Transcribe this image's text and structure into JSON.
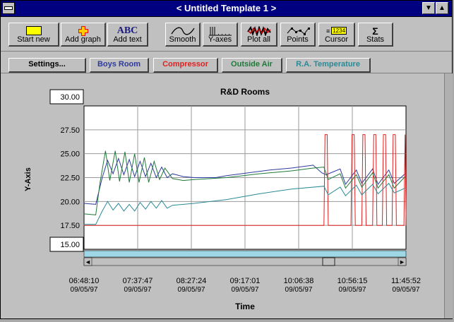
{
  "window": {
    "title": "< Untitled Template 1 >"
  },
  "toolbar": {
    "buttons": [
      {
        "label": "Start new",
        "icon": "start-new-icon"
      },
      {
        "label": "Add graph",
        "icon": "add-graph-icon"
      },
      {
        "label": "Add text",
        "icon": "add-text-icon",
        "icon_text": "ABC"
      },
      {
        "label": "Smooth",
        "icon": "smooth-icon"
      },
      {
        "label": "Y-axes",
        "icon": "y-axes-icon"
      },
      {
        "label": "Plot all",
        "icon": "plot-all-icon"
      },
      {
        "label": "Points",
        "icon": "points-icon"
      },
      {
        "label": "Cursor",
        "icon": "cursor-icon",
        "icon_text": "1234"
      },
      {
        "label": "Stats",
        "icon": "stats-icon",
        "icon_text": "Σ"
      }
    ]
  },
  "filters": {
    "settings_label": "Settings...",
    "series_buttons": [
      {
        "label": "Boys Room",
        "color": "#2e3a9e"
      },
      {
        "label": "Compressor",
        "color": "#e02020"
      },
      {
        "label": "Outside Air",
        "color": "#1f7a3a"
      },
      {
        "label": "R.A. Temperature",
        "color": "#2a8a96"
      }
    ]
  },
  "chart": {
    "ymax_field": "30.00",
    "ymin_field": "15.00",
    "x_tick_times": [
      "06:48:10",
      "07:37:47",
      "08:27:24",
      "09:17:01",
      "10:06:38",
      "10:56:15",
      "11:45:52"
    ],
    "x_tick_dates": [
      "09/05/97",
      "09/05/97",
      "09/05/97",
      "09/05/97",
      "09/05/97",
      "09/05/97",
      "09/05/97"
    ]
  },
  "chart_data": {
    "type": "line",
    "title": "R&D Rooms",
    "xlabel": "Time",
    "ylabel": "Y-Axis",
    "ylim": [
      15,
      30
    ],
    "yticks": [
      "27.50",
      "25.00",
      "22.50",
      "20.00",
      "17.50"
    ],
    "ytick_values": [
      27.5,
      25.0,
      22.5,
      20.0,
      17.5
    ],
    "xlim": [
      "06:48:10",
      "11:45:52"
    ],
    "grid": true,
    "series": [
      {
        "name": "Boys Room",
        "color": "#2e3a9e",
        "x": [
          "06:48",
          "06:59",
          "07:05",
          "07:10",
          "07:15",
          "07:20",
          "07:25",
          "07:30",
          "07:35",
          "07:40",
          "07:45",
          "07:50",
          "07:55",
          "08:00",
          "08:05",
          "08:10",
          "08:20",
          "08:30",
          "08:40",
          "08:50",
          "09:00",
          "09:20",
          "09:40",
          "10:00",
          "10:20",
          "10:28",
          "10:32",
          "10:45",
          "10:50",
          "11:00",
          "11:05",
          "11:15",
          "11:20",
          "11:30",
          "11:35",
          "11:45"
        ],
        "y": [
          19.8,
          19.7,
          22.5,
          24.3,
          22.9,
          24.5,
          22.8,
          24.4,
          22.6,
          24.2,
          22.6,
          24.0,
          22.5,
          23.6,
          22.5,
          22.9,
          22.6,
          22.5,
          22.5,
          22.5,
          22.7,
          23.0,
          23.3,
          23.5,
          23.8,
          23.0,
          22.8,
          23.4,
          21.8,
          23.3,
          21.9,
          23.4,
          21.8,
          23.3,
          21.9,
          22.9
        ]
      },
      {
        "name": "Compressor",
        "color": "#e02020",
        "x": [
          "06:48",
          "10:30",
          "10:31",
          "10:33",
          "10:34",
          "10:55",
          "10:56",
          "10:58",
          "10:59",
          "11:05",
          "11:06",
          "11:08",
          "11:09",
          "11:15",
          "11:16",
          "11:18",
          "11:19",
          "11:24",
          "11:25",
          "11:27",
          "11:28",
          "11:33",
          "11:34",
          "11:36",
          "11:37",
          "11:44",
          "11:45",
          "11:46"
        ],
        "y": [
          17.5,
          17.5,
          27.0,
          27.0,
          17.5,
          17.5,
          27.0,
          27.0,
          17.5,
          17.5,
          27.0,
          27.0,
          17.5,
          17.5,
          27.0,
          27.0,
          17.5,
          17.5,
          27.0,
          27.0,
          17.5,
          17.5,
          27.0,
          27.0,
          17.5,
          17.5,
          27.0,
          17.5
        ]
      },
      {
        "name": "Outside Air",
        "color": "#1f7a3a",
        "x": [
          "06:48",
          "06:59",
          "07:03",
          "07:08",
          "07:12",
          "07:17",
          "07:21",
          "07:26",
          "07:30",
          "07:35",
          "07:39",
          "07:44",
          "07:48",
          "07:53",
          "07:58",
          "08:03",
          "08:10",
          "08:20",
          "08:30",
          "09:00",
          "09:30",
          "10:00",
          "10:20",
          "10:30",
          "10:34",
          "10:45",
          "10:50",
          "11:00",
          "11:05",
          "11:15",
          "11:20",
          "11:30",
          "11:35",
          "11:45"
        ],
        "y": [
          18.7,
          18.6,
          22.0,
          25.3,
          22.2,
          25.3,
          22.1,
          25.2,
          22.0,
          25.0,
          22.0,
          24.6,
          22.0,
          24.2,
          22.3,
          23.5,
          22.4,
          22.2,
          22.3,
          22.5,
          22.9,
          23.2,
          23.5,
          23.6,
          22.3,
          22.9,
          21.4,
          22.8,
          21.5,
          23.0,
          21.4,
          22.8,
          21.4,
          22.6
        ]
      },
      {
        "name": "R.A. Temperature",
        "color": "#2a8a96",
        "x": [
          "06:48",
          "06:59",
          "07:05",
          "07:10",
          "07:15",
          "07:20",
          "07:25",
          "07:30",
          "07:35",
          "07:40",
          "07:45",
          "07:50",
          "07:55",
          "08:00",
          "08:05",
          "08:10",
          "08:30",
          "09:00",
          "09:30",
          "10:00",
          "10:30",
          "10:34",
          "10:45",
          "10:50",
          "11:00",
          "11:05",
          "11:15",
          "11:20",
          "11:30",
          "11:35",
          "11:45"
        ],
        "y": [
          17.6,
          17.6,
          19.0,
          20.0,
          19.1,
          19.8,
          19.0,
          19.7,
          19.0,
          19.9,
          19.2,
          20.0,
          19.3,
          20.1,
          19.3,
          19.6,
          19.8,
          20.2,
          20.8,
          21.3,
          21.6,
          20.7,
          21.5,
          20.6,
          21.7,
          20.7,
          21.8,
          20.8,
          21.9,
          20.9,
          21.4
        ]
      }
    ]
  }
}
